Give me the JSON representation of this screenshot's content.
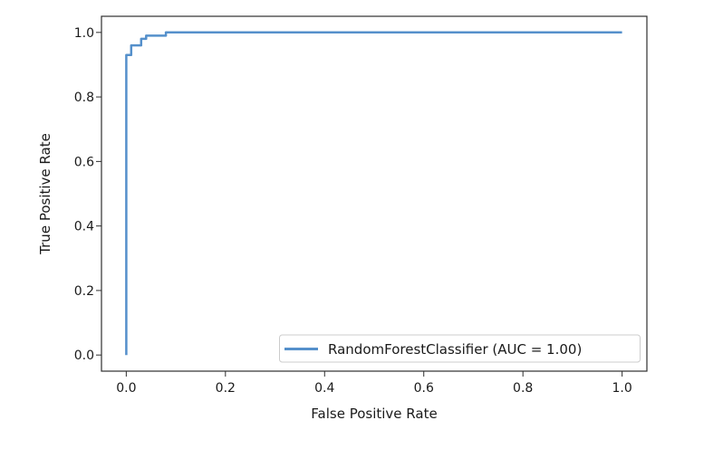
{
  "figure": {
    "background": "#ffffff",
    "title": ""
  },
  "colors": {
    "line": "#5590cb",
    "text": "#1a1a1a",
    "spine": "#2e2e2e",
    "legend_border": "#cccccc",
    "legend_background": "#ffffff"
  },
  "chart_data": {
    "type": "line",
    "subtype": "roc-curve-step",
    "title": "",
    "xlabel": "False Positive Rate",
    "ylabel": "True Positive Rate",
    "xlim": [
      -0.05,
      1.05
    ],
    "ylim": [
      -0.05,
      1.05
    ],
    "grid": false,
    "xticks": [
      0.0,
      0.2,
      0.4,
      0.6,
      0.8,
      1.0
    ],
    "xticklabels": [
      "0.0",
      "0.2",
      "0.4",
      "0.6",
      "0.8",
      "1.0"
    ],
    "yticks": [
      0.0,
      0.2,
      0.4,
      0.6,
      0.8,
      1.0
    ],
    "yticklabels": [
      "0.0",
      "0.2",
      "0.4",
      "0.6",
      "0.8",
      "1.0"
    ],
    "legend": {
      "position": "lower right",
      "entries": [
        {
          "label": "RandomForestClassifier (AUC = 1.00)",
          "color": "#5590cb"
        }
      ]
    },
    "series": [
      {
        "name": "RandomForestClassifier",
        "auc": "1.00",
        "color": "#5590cb",
        "x": [
          0.0,
          0.0,
          0.01,
          0.01,
          0.03,
          0.03,
          0.04,
          0.04,
          0.08,
          0.08,
          1.0
        ],
        "y": [
          0.0,
          0.93,
          0.93,
          0.96,
          0.96,
          0.98,
          0.98,
          0.99,
          0.99,
          1.0,
          1.0
        ]
      }
    ]
  }
}
